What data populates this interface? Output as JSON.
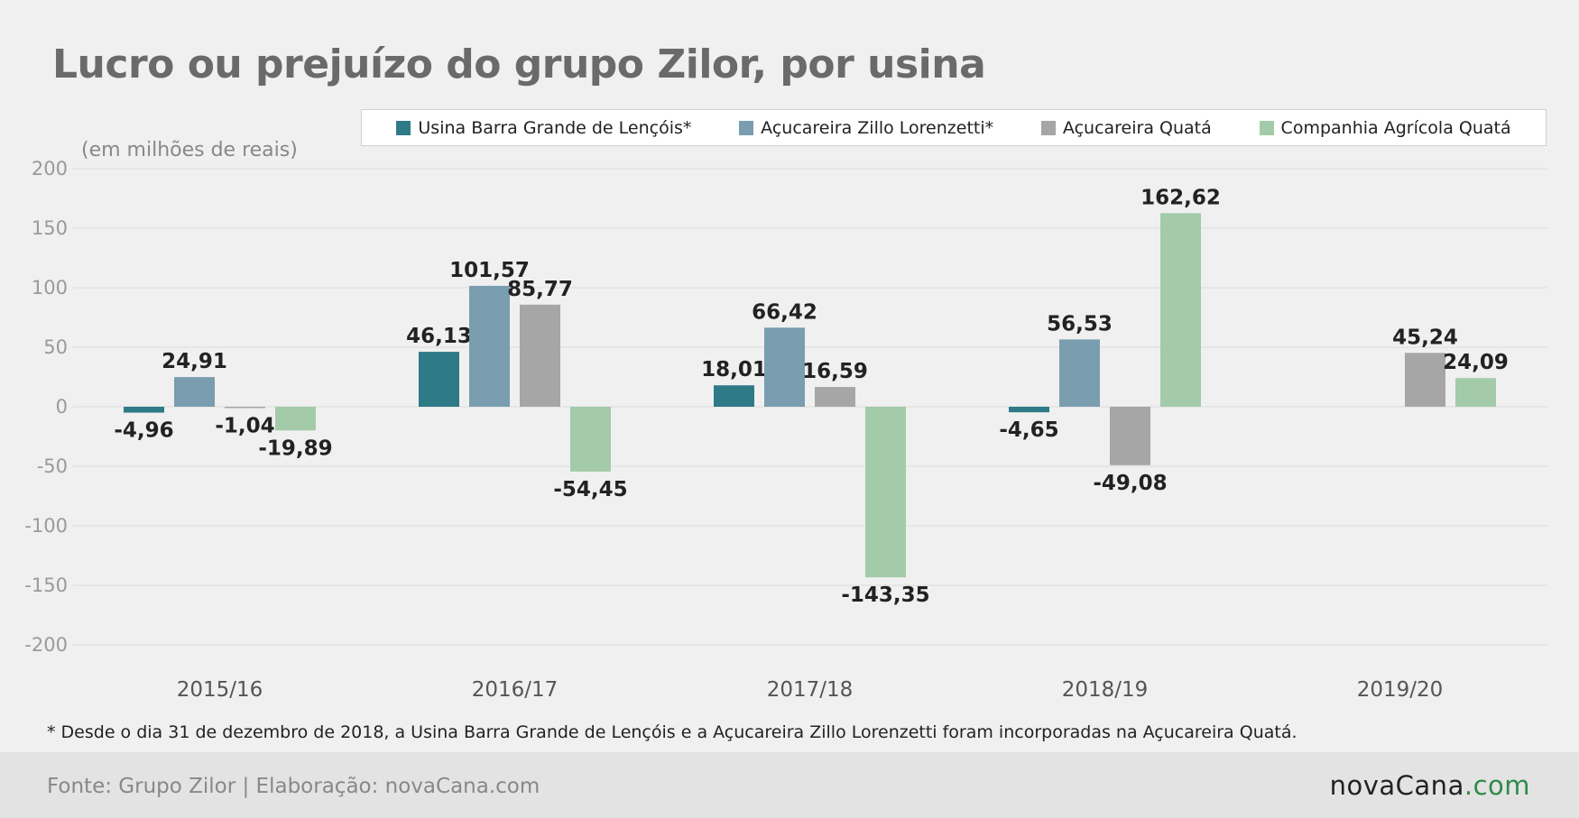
{
  "title": "Lucro ou prejuízo do grupo Zilor, por usina",
  "unit_label": "(em milhões de reais)",
  "footnote": "* Desde o dia 31 de dezembro de 2018, a Usina Barra Grande de Lençóis e a Açucareira Zillo Lorenzetti foram incorporadas na Açucareira Quatá.",
  "source": "Fonte: Grupo Zilor | Elaboração: novaCana.com",
  "logo": {
    "main": "novaCana",
    "dot": ".",
    "tld": "com"
  },
  "chart_data": {
    "type": "bar",
    "categories": [
      "2015/16",
      "2016/17",
      "2017/18",
      "2018/19",
      "2019/20"
    ],
    "ylim": [
      -200,
      200
    ],
    "yticks": [
      200,
      150,
      100,
      50,
      0,
      -50,
      -100,
      -150,
      -200
    ],
    "grid": true,
    "legend_position": "top-right",
    "series": [
      {
        "name": "Usina Barra Grande de Lençóis*",
        "color": "#2e7a87",
        "values": [
          -4.96,
          46.13,
          18.01,
          -4.65,
          null
        ],
        "labels": [
          "-4,96",
          "46,13",
          "18,01",
          "-4,65",
          null
        ]
      },
      {
        "name": "Açucareira Zillo Lorenzetti*",
        "color": "#7a9db0",
        "values": [
          24.91,
          101.57,
          66.42,
          56.53,
          null
        ],
        "labels": [
          "24,91",
          "101,57",
          "66,42",
          "56,53",
          null
        ]
      },
      {
        "name": "Açucareira Quatá",
        "color": "#a6a6a6",
        "values": [
          -1.04,
          85.77,
          16.59,
          -49.08,
          45.24
        ],
        "labels": [
          "-1,04",
          "85,77",
          "16,59",
          "-49,08",
          "45,24"
        ]
      },
      {
        "name": "Companhia Agrícola Quatá",
        "color": "#a3cba9",
        "values": [
          -19.89,
          -54.45,
          -143.35,
          162.62,
          24.09
        ],
        "labels": [
          "-19,89",
          "-54,45",
          "-143,35",
          "162,62",
          "24,09"
        ]
      }
    ]
  }
}
